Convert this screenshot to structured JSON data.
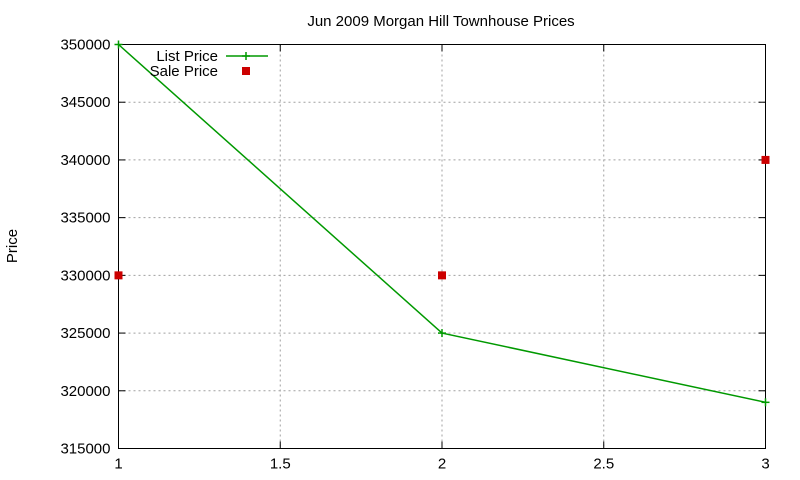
{
  "chart_data": {
    "type": "line",
    "title": "Jun 2009 Morgan Hill Townhouse Prices",
    "xlabel": "",
    "ylabel": "Price",
    "xlim": [
      1,
      3
    ],
    "ylim": [
      315000,
      350000
    ],
    "x_ticks": [
      1,
      1.5,
      2,
      2.5,
      3
    ],
    "x_tick_labels": [
      "1",
      "1.5",
      "2",
      "2.5",
      "3"
    ],
    "y_ticks": [
      315000,
      320000,
      325000,
      330000,
      335000,
      340000,
      345000,
      350000
    ],
    "y_tick_labels": [
      "315000",
      "320000",
      "325000",
      "330000",
      "335000",
      "340000",
      "345000",
      "350000"
    ],
    "grid": true,
    "legend_position": "top-left",
    "series": [
      {
        "name": "List Price",
        "style": "linespoints",
        "marker": "plus",
        "color": "#009900",
        "x": [
          1,
          2,
          3
        ],
        "y": [
          350000,
          325000,
          319000
        ]
      },
      {
        "name": "Sale Price",
        "style": "points",
        "marker": "square",
        "color": "#cc0000",
        "x": [
          1,
          2,
          3
        ],
        "y": [
          330000,
          330000,
          340000
        ]
      }
    ]
  }
}
